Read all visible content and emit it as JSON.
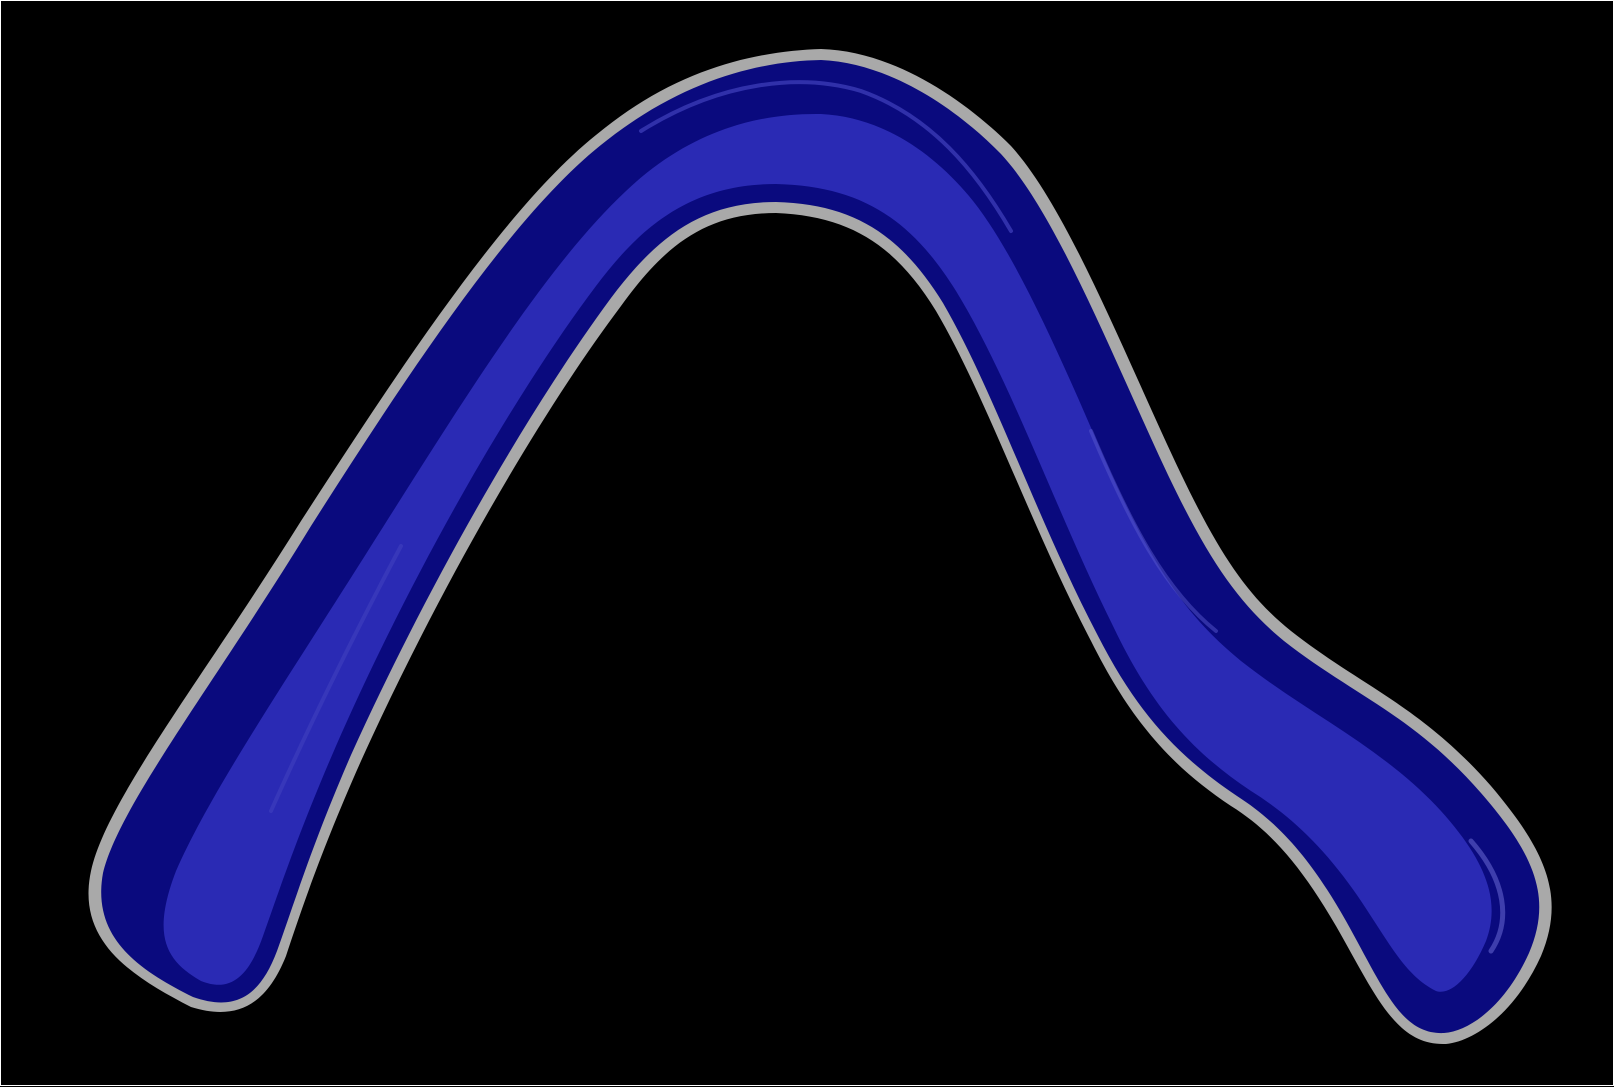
{
  "figure": {
    "subject": "boomerang",
    "colors": {
      "background": "#000000",
      "frame": "#ffffff",
      "outline": "#a9a9a9",
      "body": "#1c1ca0",
      "body_highlight": "#2a2ab4",
      "body_shadow": "#0a0a7e"
    }
  }
}
